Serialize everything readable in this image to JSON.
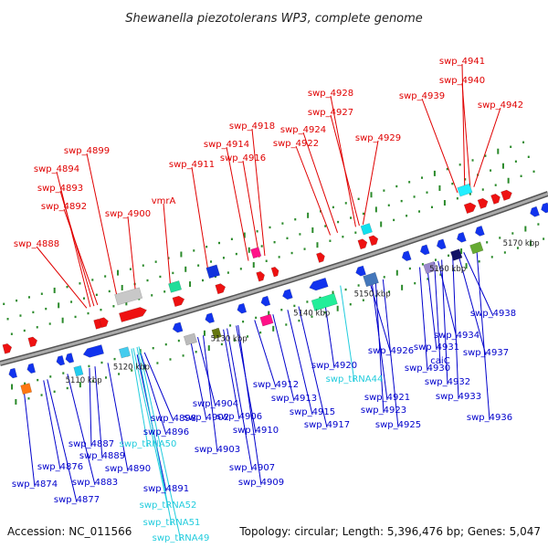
{
  "title": "Shewanella piezotolerans WP3, complete genome",
  "footer": {
    "accession": "Accession: NC_011566",
    "topology": "Topology: circular; Length: 5,396,476 bp; Genes: 5,047"
  },
  "colors": {
    "top_label": "#e00000",
    "bottom_label": "#0000cc",
    "trna_label": "#22ccdd",
    "backbone": "#888888",
    "tick_dot": "#2a8a2a"
  },
  "ticks": [
    "5110 kbp",
    "5120 kbp",
    "5130 kbp",
    "5140 kbp",
    "5150 kbp",
    "5160 kbp",
    "5170 kbp"
  ],
  "top_labels": [
    "swp_4941",
    "swp_4940",
    "swp_4939",
    "swp_4942",
    "swp_4928",
    "swp_4927",
    "swp_4924",
    "swp_4922",
    "swp_4929",
    "swp_4918",
    "swp_4914",
    "swp_4916",
    "swp_4911",
    "swp_4899",
    "swp_4894",
    "swp_4893",
    "swp_4892",
    "vmrA",
    "swp_4900",
    "swp_4888"
  ],
  "bottom_labels": [
    "swp_4938",
    "swp_4934",
    "swp_4931",
    "swp_4937",
    "caiC",
    "swp_4930",
    "swp_4932",
    "swp_4933",
    "swp_4936",
    "swp_4926",
    "swp_4921",
    "swp_4923",
    "swp_4925",
    "swp_4920",
    "swp_4912",
    "swp_4913",
    "swp_4915",
    "swp_4917",
    "swp_4904",
    "swp_4902",
    "swp_4906",
    "swp_4910",
    "swp_4903",
    "swp_4907",
    "swp_4909",
    "swp_4898",
    "swp_4896",
    "swp_4887",
    "swp_4889",
    "swp_4890",
    "swp_4891",
    "swp_4876",
    "swp_4883",
    "swp_4874",
    "swp_4877"
  ],
  "trna_labels": [
    "swp_tRNA44",
    "swp_tRNA50",
    "swp_tRNA52",
    "swp_tRNA51",
    "swp_tRNA49"
  ]
}
